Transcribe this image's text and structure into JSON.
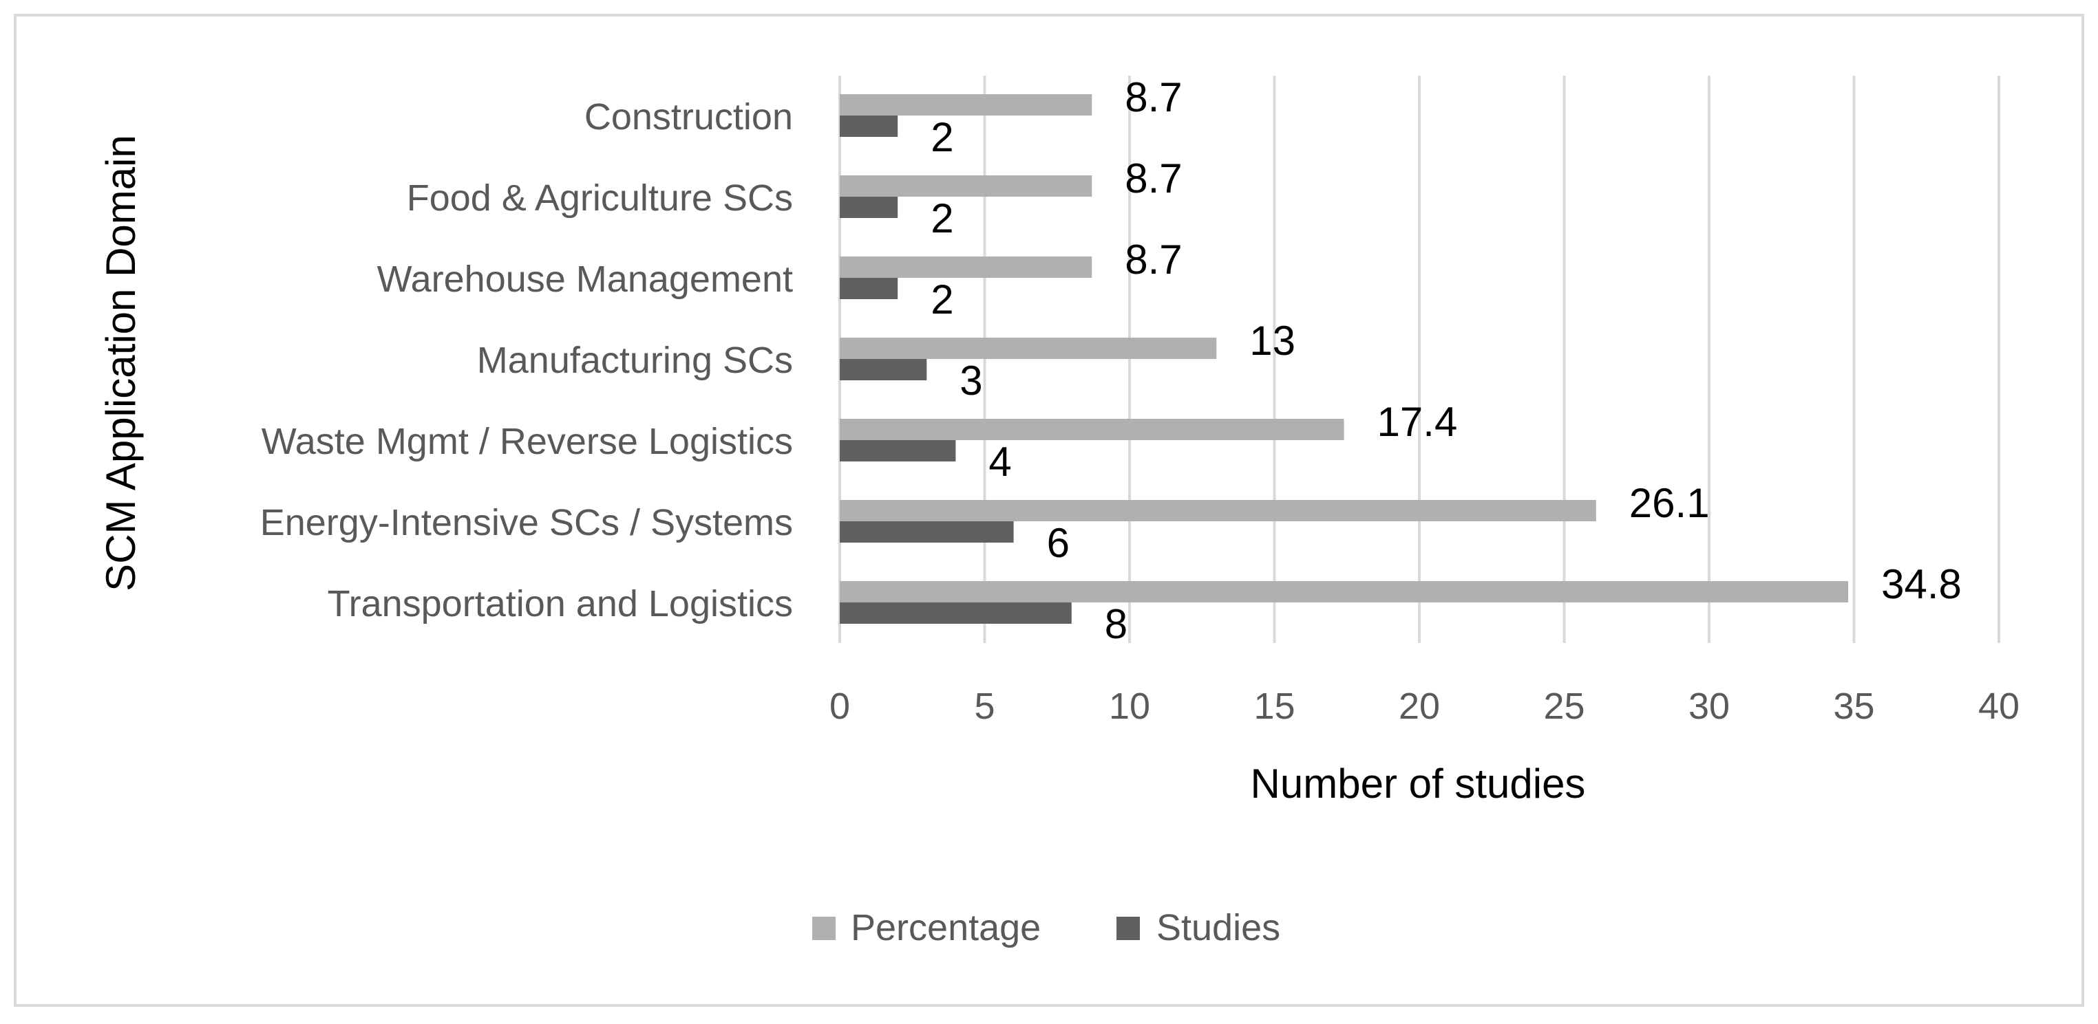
{
  "chart_data": {
    "type": "bar",
    "orientation": "horizontal",
    "categories": [
      "Construction",
      "Food & Agriculture SCs",
      "Warehouse Management",
      "Manufacturing SCs",
      "Waste Mgmt / Reverse Logistics",
      "Energy-Intensive SCs / Systems",
      "Transportation and Logistics"
    ],
    "series": [
      {
        "name": "Percentage",
        "color": "#b0b0b0",
        "values": [
          8.7,
          8.7,
          8.7,
          13,
          17.4,
          26.1,
          34.8
        ]
      },
      {
        "name": "Studies",
        "color": "#606060",
        "values": [
          2,
          2,
          2,
          3,
          4,
          6,
          8
        ]
      }
    ],
    "data_labels": {
      "Percentage": [
        "8.7",
        "8.7",
        "8.7",
        "13",
        "17.4",
        "26.1",
        "34.8"
      ],
      "Studies": [
        "2",
        "2",
        "2",
        "3",
        "4",
        "6",
        "8"
      ]
    },
    "xlabel": "Number of studies",
    "ylabel": "SCM Application Domain",
    "xlim": [
      0,
      40
    ],
    "xticks": [
      0,
      5,
      10,
      15,
      20,
      25,
      30,
      35,
      40
    ],
    "xtick_labels": [
      "0",
      "5",
      "10",
      "15",
      "20",
      "25",
      "30",
      "35",
      "40"
    ],
    "grid": true,
    "legend_position": "bottom-center"
  },
  "colors": {
    "border": "#d9d9d9",
    "grid": "#d9d9d9",
    "axis_text": "#595959",
    "label_text": "#000000"
  }
}
